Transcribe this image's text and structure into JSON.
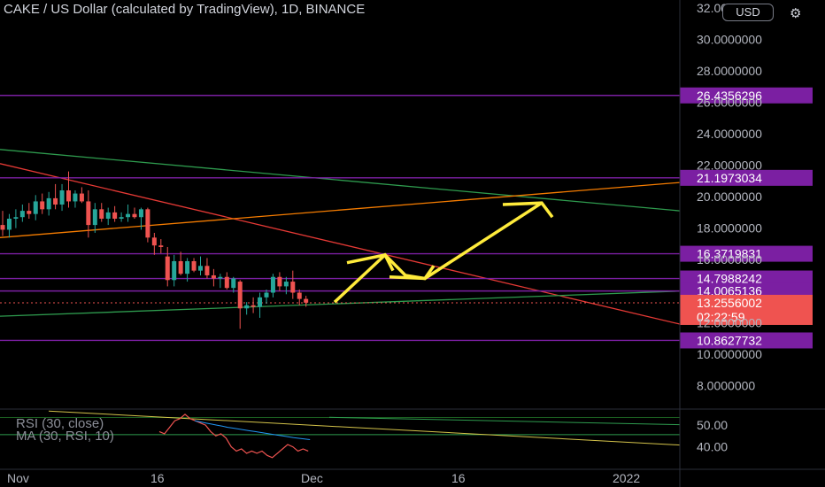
{
  "header": {
    "title": "CAKE / US Dollar (calculated by TradingView), 1D, BINANCE",
    "currency_button": "USD",
    "settings_icon": "gear-icon"
  },
  "indicators": {
    "rsi_label": "RSI (30, close)",
    "ma_label": "MA (30, RSI, 10)"
  },
  "colors": {
    "background": "#000000",
    "up_candle": "#26a69a",
    "down_candle": "#ef5350",
    "level_line": "#7b1fa2",
    "level_label_bg": "#7b1fa2",
    "current_price_bg": "#ef5350",
    "arrow": "#ffeb3b",
    "trend_red": "#e53935",
    "trend_green": "#2e9b4e",
    "trend_orange": "#f57c00"
  },
  "chart_data": {
    "type": "candlestick",
    "symbol": "CAKE / US Dollar",
    "y_axis_ticks": [
      "32.0000000",
      "30.0000000",
      "28.0000000",
      "26.0000000",
      "24.0000000",
      "22.0000000",
      "20.0000000",
      "18.0000000",
      "16.0000000",
      "12.0000000",
      "10.0000000",
      "8.0000000"
    ],
    "y_range": [
      6.5,
      32.5
    ],
    "x_axis_ticks": [
      "Nov",
      "16",
      "Dec",
      "16",
      "2022"
    ],
    "horizontal_levels": [
      26.4356296,
      21.1973034,
      16.3719831,
      14.7988242,
      14.0065136,
      10.8627732
    ],
    "level_labels": [
      "26.4356296",
      "21.1973034",
      "16.3719831",
      "14.7988242",
      "14.0065136",
      "10.8627732"
    ],
    "current_price": {
      "label": "13.2556002",
      "countdown": "02:22:59",
      "value": 13.2556002
    },
    "candles": [
      {
        "o": 18.2,
        "h": 19.1,
        "l": 17.5,
        "c": 17.9
      },
      {
        "o": 17.9,
        "h": 18.9,
        "l": 17.4,
        "c": 18.6
      },
      {
        "o": 18.6,
        "h": 19.2,
        "l": 18.0,
        "c": 18.7
      },
      {
        "o": 18.7,
        "h": 19.5,
        "l": 18.4,
        "c": 19.1
      },
      {
        "o": 19.1,
        "h": 19.6,
        "l": 18.6,
        "c": 18.9
      },
      {
        "o": 18.9,
        "h": 20.1,
        "l": 18.5,
        "c": 19.7
      },
      {
        "o": 19.7,
        "h": 20.2,
        "l": 18.9,
        "c": 19.2
      },
      {
        "o": 19.2,
        "h": 20.3,
        "l": 18.8,
        "c": 19.9
      },
      {
        "o": 19.9,
        "h": 20.8,
        "l": 19.2,
        "c": 19.5
      },
      {
        "o": 19.5,
        "h": 20.8,
        "l": 19.1,
        "c": 20.4
      },
      {
        "o": 20.4,
        "h": 21.6,
        "l": 19.3,
        "c": 19.7
      },
      {
        "o": 19.7,
        "h": 20.4,
        "l": 19.3,
        "c": 20.2
      },
      {
        "o": 20.2,
        "h": 20.6,
        "l": 19.6,
        "c": 19.7
      },
      {
        "o": 19.7,
        "h": 20.4,
        "l": 17.4,
        "c": 18.2
      },
      {
        "o": 18.2,
        "h": 19.6,
        "l": 17.7,
        "c": 19.2
      },
      {
        "o": 19.2,
        "h": 19.6,
        "l": 18.4,
        "c": 18.6
      },
      {
        "o": 18.6,
        "h": 19.3,
        "l": 18.2,
        "c": 19.0
      },
      {
        "o": 19.0,
        "h": 19.4,
        "l": 18.4,
        "c": 18.6
      },
      {
        "o": 18.6,
        "h": 19.0,
        "l": 18.4,
        "c": 18.7
      },
      {
        "o": 18.7,
        "h": 19.5,
        "l": 18.4,
        "c": 18.9
      },
      {
        "o": 18.9,
        "h": 19.3,
        "l": 18.6,
        "c": 18.7
      },
      {
        "o": 18.7,
        "h": 19.3,
        "l": 17.9,
        "c": 19.2
      },
      {
        "o": 19.2,
        "h": 19.3,
        "l": 17.1,
        "c": 17.4
      },
      {
        "o": 17.4,
        "h": 17.7,
        "l": 16.3,
        "c": 16.9
      },
      {
        "o": 16.9,
        "h": 17.3,
        "l": 16.4,
        "c": 16.8
      },
      {
        "o": 16.2,
        "h": 16.8,
        "l": 14.3,
        "c": 14.7
      },
      {
        "o": 14.7,
        "h": 16.3,
        "l": 14.3,
        "c": 15.9
      },
      {
        "o": 15.9,
        "h": 16.5,
        "l": 15.0,
        "c": 15.1
      },
      {
        "o": 15.1,
        "h": 16.1,
        "l": 14.6,
        "c": 15.9
      },
      {
        "o": 15.9,
        "h": 16.1,
        "l": 15.2,
        "c": 15.3
      },
      {
        "o": 15.3,
        "h": 16.2,
        "l": 15.0,
        "c": 15.6
      },
      {
        "o": 15.6,
        "h": 16.1,
        "l": 14.8,
        "c": 15.0
      },
      {
        "o": 15.0,
        "h": 15.4,
        "l": 14.3,
        "c": 14.8
      },
      {
        "o": 14.8,
        "h": 15.1,
        "l": 14.2,
        "c": 14.9
      },
      {
        "o": 14.9,
        "h": 15.2,
        "l": 14.1,
        "c": 14.2
      },
      {
        "o": 14.2,
        "h": 14.9,
        "l": 13.9,
        "c": 14.8
      },
      {
        "o": 14.6,
        "h": 14.7,
        "l": 11.6,
        "c": 12.9
      },
      {
        "o": 12.9,
        "h": 13.3,
        "l": 12.5,
        "c": 13.1
      },
      {
        "o": 13.1,
        "h": 13.6,
        "l": 12.6,
        "c": 13.0
      },
      {
        "o": 13.0,
        "h": 13.9,
        "l": 12.3,
        "c": 13.6
      },
      {
        "o": 13.6,
        "h": 14.1,
        "l": 13.2,
        "c": 13.9
      },
      {
        "o": 13.9,
        "h": 15.1,
        "l": 13.6,
        "c": 14.9
      },
      {
        "o": 14.9,
        "h": 15.2,
        "l": 14.0,
        "c": 14.3
      },
      {
        "o": 14.3,
        "h": 14.9,
        "l": 13.8,
        "c": 14.6
      },
      {
        "o": 14.6,
        "h": 15.3,
        "l": 13.5,
        "c": 13.9
      },
      {
        "o": 13.9,
        "h": 14.1,
        "l": 13.1,
        "c": 13.5
      },
      {
        "o": 13.5,
        "h": 13.7,
        "l": 13.0,
        "c": 13.26
      }
    ],
    "rsi_panel": {
      "y_axis_ticks": [
        "50.00",
        "40.00"
      ],
      "y_range": [
        30,
        57
      ],
      "rsi": [
        47,
        46,
        49,
        52,
        53,
        55,
        53,
        52,
        51,
        50,
        47,
        45,
        46,
        44,
        40,
        38,
        39,
        37,
        38,
        37,
        38,
        36,
        35,
        37,
        39,
        41,
        40,
        38,
        39,
        38
      ],
      "ma": [
        52,
        51.5,
        51,
        50.5,
        50,
        49.5,
        49,
        48.6,
        48.2,
        47.8,
        47.4,
        47,
        46.6,
        46.2,
        45.8,
        45.4,
        45,
        44.6,
        44.2,
        43.9,
        43.6,
        43.3
      ]
    }
  }
}
